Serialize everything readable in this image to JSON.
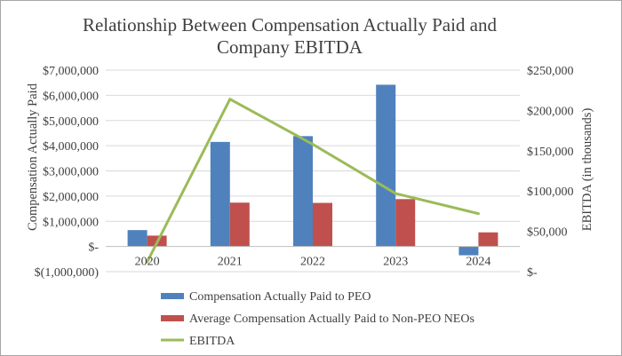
{
  "chart_data": {
    "type": "bar+line",
    "title_lines": [
      "Relationship Between Compensation Actually Paid and",
      "Company EBITDA"
    ],
    "categories": [
      "2020",
      "2021",
      "2022",
      "2023",
      "2024"
    ],
    "ylabel": "Compensation Actually Paid",
    "y2label": "EBITDA (in thousands)",
    "ylim": [
      -1000000,
      7000000
    ],
    "y2lim": [
      0,
      250000
    ],
    "yticks": [
      {
        "value": 7000000,
        "label": "$7,000,000"
      },
      {
        "value": 6000000,
        "label": "$6,000,000"
      },
      {
        "value": 5000000,
        "label": "$5,000,000"
      },
      {
        "value": 4000000,
        "label": "$4,000,000"
      },
      {
        "value": 3000000,
        "label": "$3,000,000"
      },
      {
        "value": 2000000,
        "label": "$2,000,000"
      },
      {
        "value": 1000000,
        "label": "$1,000,000"
      },
      {
        "value": 0,
        "label": "$-"
      },
      {
        "value": -1000000,
        "label": "$(1,000,000)"
      }
    ],
    "y2ticks": [
      {
        "value": 250000,
        "label": "$250,000"
      },
      {
        "value": 200000,
        "label": "$200,000"
      },
      {
        "value": 150000,
        "label": "$150,000"
      },
      {
        "value": 100000,
        "label": "$100,000"
      },
      {
        "value": 50000,
        "label": "$50,000"
      },
      {
        "value": 0,
        "label": "$-"
      }
    ],
    "series": [
      {
        "name": "Compensation Actually Paid to PEO",
        "type": "bar",
        "axis": "left",
        "color": "#4f81bd",
        "values": [
          650000,
          4150000,
          4380000,
          6420000,
          -350000
        ]
      },
      {
        "name": "Average Compensation Actually Paid to Non-PEO NEOs",
        "type": "bar",
        "axis": "left",
        "color": "#c0504d",
        "values": [
          430000,
          1740000,
          1730000,
          1880000,
          560000
        ]
      },
      {
        "name": "EBITDA",
        "type": "line",
        "axis": "right",
        "color": "#9bbb59",
        "values": [
          12000,
          214000,
          158000,
          97000,
          72000
        ]
      }
    ],
    "colors": {
      "gridline": "#d9d9d9",
      "baseline": "#bfbfbf",
      "text": "#404040"
    }
  }
}
